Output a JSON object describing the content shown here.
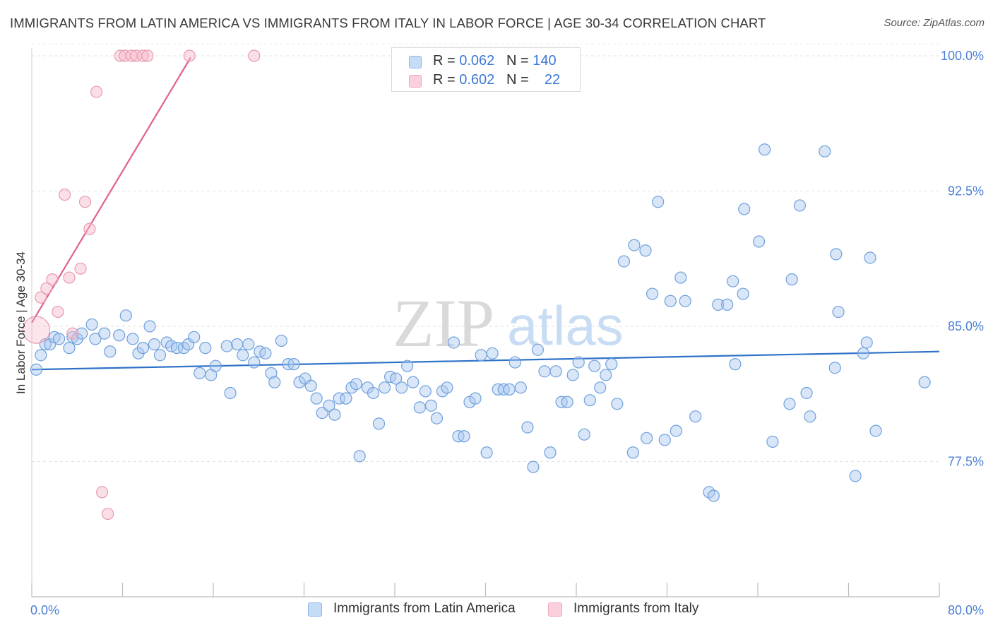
{
  "title": "IMMIGRANTS FROM LATIN AMERICA VS IMMIGRANTS FROM ITALY IN LABOR FORCE | AGE 30-34 CORRELATION CHART",
  "source": "Source: ZipAtlas.com",
  "watermark": {
    "zip": "ZIP",
    "atlas": "atlas"
  },
  "legend_top": [
    {
      "r_label": "R = ",
      "r_value": "0.062",
      "n_label": "N = ",
      "n_value": "140",
      "color": "#a8c8f0"
    },
    {
      "r_label": "R = ",
      "r_value": "0.602",
      "n_label": "N = ",
      "n_value": "22",
      "color": "#f7b8c8"
    }
  ],
  "chart_data": {
    "type": "scatter",
    "xlabel": "",
    "ylabel": "In Labor Force | Age 30-34",
    "x_tick_labels": [
      "0.0%",
      "80.0%"
    ],
    "y_tick_labels": [
      "77.5%",
      "85.0%",
      "92.5%",
      "100.0%"
    ],
    "y_ticks": [
      77.5,
      85.0,
      92.5,
      100.0
    ],
    "xlim": [
      0,
      80
    ],
    "ylim": [
      70.0,
      100.2
    ],
    "grid": true,
    "legend_position": "bottom",
    "series": [
      {
        "name": "Immigrants from Latin America",
        "color": "#a8c8f0",
        "stroke": "#6fa0dd",
        "trend": {
          "x": [
            0,
            80
          ],
          "y": [
            82.6,
            83.6
          ],
          "color": "#2e72c8"
        },
        "points": [
          [
            0.4,
            82.6
          ],
          [
            0.8,
            83.4
          ],
          [
            1.2,
            84.0
          ],
          [
            1.6,
            84.0
          ],
          [
            2.0,
            84.4
          ],
          [
            2.4,
            84.3
          ],
          [
            3.3,
            83.8
          ],
          [
            3.6,
            84.4
          ],
          [
            4.0,
            84.3
          ],
          [
            4.4,
            84.6
          ],
          [
            5.3,
            85.1
          ],
          [
            5.6,
            84.3
          ],
          [
            6.4,
            84.6
          ],
          [
            6.9,
            83.6
          ],
          [
            7.7,
            84.5
          ],
          [
            8.3,
            85.6
          ],
          [
            8.9,
            84.3
          ],
          [
            9.4,
            83.5
          ],
          [
            9.8,
            83.8
          ],
          [
            10.4,
            85.0
          ],
          [
            10.8,
            84.0
          ],
          [
            11.3,
            83.4
          ],
          [
            11.9,
            84.1
          ],
          [
            12.3,
            83.9
          ],
          [
            12.8,
            83.8
          ],
          [
            13.4,
            83.8
          ],
          [
            13.8,
            84.0
          ],
          [
            14.3,
            84.4
          ],
          [
            14.8,
            82.4
          ],
          [
            15.3,
            83.8
          ],
          [
            15.8,
            82.3
          ],
          [
            16.2,
            82.8
          ],
          [
            17.2,
            83.9
          ],
          [
            17.5,
            81.3
          ],
          [
            18.1,
            84.0
          ],
          [
            18.6,
            83.4
          ],
          [
            19.1,
            84.0
          ],
          [
            19.6,
            83.0
          ],
          [
            20.1,
            83.6
          ],
          [
            20.6,
            83.5
          ],
          [
            21.1,
            82.4
          ],
          [
            21.4,
            81.9
          ],
          [
            22.0,
            84.2
          ],
          [
            22.6,
            82.9
          ],
          [
            23.1,
            82.9
          ],
          [
            23.6,
            81.9
          ],
          [
            24.1,
            82.1
          ],
          [
            24.6,
            81.7
          ],
          [
            25.1,
            81.0
          ],
          [
            25.6,
            80.2
          ],
          [
            26.2,
            80.6
          ],
          [
            26.7,
            80.1
          ],
          [
            27.1,
            81.0
          ],
          [
            27.7,
            81.0
          ],
          [
            28.2,
            81.6
          ],
          [
            28.6,
            81.8
          ],
          [
            28.9,
            77.8
          ],
          [
            29.6,
            81.6
          ],
          [
            30.1,
            81.3
          ],
          [
            30.6,
            79.6
          ],
          [
            31.1,
            81.6
          ],
          [
            31.6,
            82.2
          ],
          [
            32.1,
            82.1
          ],
          [
            32.6,
            81.6
          ],
          [
            33.1,
            82.8
          ],
          [
            33.6,
            81.9
          ],
          [
            34.2,
            80.5
          ],
          [
            34.7,
            81.4
          ],
          [
            35.2,
            80.6
          ],
          [
            35.7,
            79.9
          ],
          [
            36.2,
            81.4
          ],
          [
            36.6,
            81.6
          ],
          [
            37.2,
            84.1
          ],
          [
            37.6,
            78.9
          ],
          [
            38.1,
            78.9
          ],
          [
            38.6,
            80.8
          ],
          [
            39.1,
            81.0
          ],
          [
            39.6,
            83.4
          ],
          [
            40.1,
            78.0
          ],
          [
            40.6,
            83.5
          ],
          [
            41.1,
            81.5
          ],
          [
            41.6,
            81.5
          ],
          [
            42.1,
            81.5
          ],
          [
            42.6,
            83.0
          ],
          [
            43.1,
            81.6
          ],
          [
            43.7,
            79.4
          ],
          [
            44.2,
            77.2
          ],
          [
            44.6,
            83.7
          ],
          [
            45.2,
            82.5
          ],
          [
            45.7,
            78.0
          ],
          [
            46.2,
            82.5
          ],
          [
            46.7,
            80.8
          ],
          [
            47.2,
            80.8
          ],
          [
            47.7,
            82.3
          ],
          [
            48.2,
            83.0
          ],
          [
            48.7,
            79.0
          ],
          [
            49.2,
            80.9
          ],
          [
            49.6,
            82.8
          ],
          [
            50.1,
            81.6
          ],
          [
            50.6,
            82.3
          ],
          [
            51.1,
            82.9
          ],
          [
            51.6,
            80.7
          ],
          [
            52.2,
            88.6
          ],
          [
            53.0,
            78.0
          ],
          [
            53.1,
            89.5
          ],
          [
            54.1,
            89.2
          ],
          [
            54.2,
            78.8
          ],
          [
            54.7,
            86.8
          ],
          [
            55.2,
            91.9
          ],
          [
            55.8,
            78.7
          ],
          [
            56.3,
            86.4
          ],
          [
            56.8,
            79.2
          ],
          [
            57.2,
            87.7
          ],
          [
            57.6,
            86.4
          ],
          [
            58.5,
            80.0
          ],
          [
            59.7,
            75.8
          ],
          [
            60.1,
            75.6
          ],
          [
            60.5,
            86.2
          ],
          [
            61.3,
            86.2
          ],
          [
            61.8,
            87.5
          ],
          [
            62.0,
            82.9
          ],
          [
            62.7,
            86.8
          ],
          [
            62.8,
            91.5
          ],
          [
            64.1,
            89.7
          ],
          [
            64.6,
            94.8
          ],
          [
            65.3,
            78.6
          ],
          [
            66.8,
            80.7
          ],
          [
            67.0,
            87.6
          ],
          [
            67.7,
            91.7
          ],
          [
            68.3,
            81.3
          ],
          [
            68.6,
            80.0
          ],
          [
            69.9,
            94.7
          ],
          [
            70.8,
            82.7
          ],
          [
            70.9,
            89.0
          ],
          [
            71.1,
            85.8
          ],
          [
            72.6,
            76.7
          ],
          [
            73.3,
            83.5
          ],
          [
            73.6,
            84.1
          ],
          [
            73.9,
            88.8
          ],
          [
            74.4,
            79.2
          ],
          [
            78.7,
            81.9
          ]
        ]
      },
      {
        "name": "Immigrants from Italy",
        "color": "#f7b8c8",
        "stroke": "#e89ab0",
        "trend": {
          "x": [
            0,
            14.0
          ],
          "y": [
            85.2,
            99.9
          ],
          "color": "#e0608a"
        },
        "points": [
          [
            0.4,
            84.8
          ],
          [
            0.8,
            86.6
          ],
          [
            1.3,
            87.1
          ],
          [
            1.8,
            87.6
          ],
          [
            2.3,
            85.8
          ],
          [
            2.9,
            92.3
          ],
          [
            3.3,
            87.7
          ],
          [
            3.6,
            84.6
          ],
          [
            4.3,
            88.2
          ],
          [
            4.7,
            91.9
          ],
          [
            5.1,
            90.4
          ],
          [
            5.7,
            98.0
          ],
          [
            6.2,
            75.8
          ],
          [
            6.7,
            74.6
          ],
          [
            7.8,
            100.0
          ],
          [
            8.2,
            100.0
          ],
          [
            8.8,
            100.0
          ],
          [
            9.2,
            100.0
          ],
          [
            9.8,
            100.0
          ],
          [
            10.2,
            100.0
          ],
          [
            13.9,
            100.0
          ],
          [
            19.6,
            100.0
          ]
        ]
      }
    ]
  },
  "legend_bottom": [
    {
      "label": "Immigrants from Latin America",
      "color": "#a8c8f0"
    },
    {
      "label": "Immigrants from Italy",
      "color": "#f7b8c8"
    }
  ]
}
